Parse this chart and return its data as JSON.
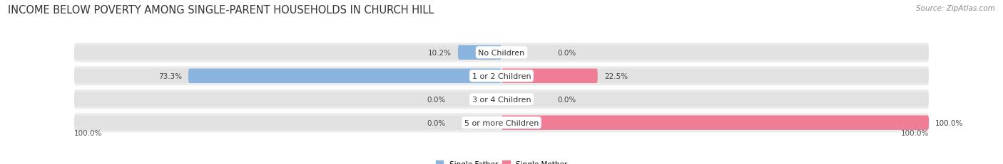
{
  "title": "INCOME BELOW POVERTY AMONG SINGLE-PARENT HOUSEHOLDS IN CHURCH HILL",
  "source": "Source: ZipAtlas.com",
  "categories": [
    "No Children",
    "1 or 2 Children",
    "3 or 4 Children",
    "5 or more Children"
  ],
  "single_father": [
    10.2,
    73.3,
    0.0,
    0.0
  ],
  "single_mother": [
    0.0,
    22.5,
    0.0,
    100.0
  ],
  "father_color": "#8ab4de",
  "mother_color": "#f07d96",
  "bar_bg_color": "#e2e2e2",
  "row_bg_color": "#ebebeb",
  "max_val": 100.0,
  "legend_father": "Single Father",
  "legend_mother": "Single Mother",
  "title_fontsize": 10.5,
  "source_fontsize": 7.5,
  "label_fontsize": 7.5,
  "cat_fontsize": 8,
  "axis_label_fontsize": 7.5,
  "bottom_labels": [
    "100.0%",
    "100.0%"
  ]
}
